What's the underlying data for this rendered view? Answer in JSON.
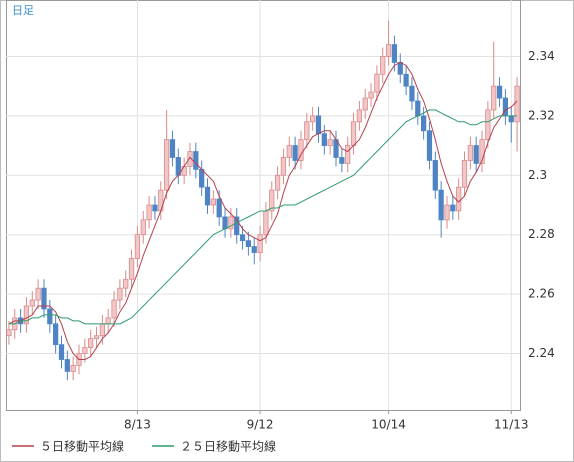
{
  "chart_data": {
    "type": "candlestick",
    "title": "日足",
    "categories": [
      null,
      null,
      null,
      null,
      null,
      null,
      null,
      null,
      null,
      null,
      null,
      null,
      null,
      null,
      null,
      null,
      null,
      null,
      null,
      null,
      null,
      null,
      "8/13",
      null,
      null,
      null,
      null,
      null,
      null,
      null,
      null,
      null,
      null,
      null,
      null,
      null,
      null,
      null,
      null,
      null,
      null,
      null,
      null,
      "9/12",
      null,
      null,
      null,
      null,
      null,
      null,
      null,
      null,
      null,
      null,
      null,
      null,
      null,
      null,
      null,
      null,
      null,
      null,
      null,
      null,
      null,
      "10/14",
      null,
      null,
      null,
      null,
      null,
      null,
      null,
      null,
      null,
      null,
      null,
      null,
      null,
      null,
      null,
      null,
      null,
      null,
      null,
      null,
      "11/13",
      null
    ],
    "open": [
      2.246,
      2.248,
      2.252,
      2.25,
      2.256,
      2.258,
      2.262,
      2.255,
      2.25,
      2.243,
      2.238,
      2.234,
      2.236,
      2.24,
      2.242,
      2.245,
      2.246,
      2.25,
      2.252,
      2.258,
      2.262,
      2.265,
      2.272,
      2.28,
      2.285,
      2.29,
      2.288,
      2.295,
      2.312,
      2.306,
      2.3,
      2.303,
      2.308,
      2.302,
      2.296,
      2.29,
      2.292,
      2.286,
      2.282,
      2.286,
      2.28,
      2.278,
      2.276,
      2.274,
      2.28,
      2.288,
      2.295,
      2.3,
      2.306,
      2.31,
      2.305,
      2.312,
      2.318,
      2.32,
      2.314,
      2.31,
      2.312,
      2.306,
      2.304,
      2.31,
      2.318,
      2.322,
      2.326,
      2.328,
      2.334,
      2.34,
      2.344,
      2.338,
      2.334,
      2.33,
      2.325,
      2.32,
      2.315,
      2.305,
      2.295,
      2.285,
      2.29,
      2.288,
      2.296,
      2.305,
      2.31,
      2.304,
      2.312,
      2.322,
      2.33,
      2.326,
      2.32,
      2.318
    ],
    "high": [
      2.251,
      2.255,
      2.255,
      2.259,
      2.261,
      2.265,
      2.265,
      2.258,
      2.253,
      2.246,
      2.241,
      2.239,
      2.243,
      2.245,
      2.248,
      2.249,
      2.253,
      2.255,
      2.261,
      2.265,
      2.268,
      2.275,
      2.283,
      2.288,
      2.293,
      2.293,
      2.298,
      2.322,
      2.315,
      2.309,
      2.306,
      2.311,
      2.311,
      2.305,
      2.299,
      2.295,
      2.295,
      2.289,
      2.289,
      2.289,
      2.283,
      2.281,
      2.279,
      2.283,
      2.291,
      2.298,
      2.303,
      2.309,
      2.313,
      2.313,
      2.315,
      2.321,
      2.323,
      2.323,
      2.317,
      2.315,
      2.315,
      2.309,
      2.313,
      2.321,
      2.325,
      2.329,
      2.331,
      2.337,
      2.343,
      2.352,
      2.347,
      2.341,
      2.337,
      2.333,
      2.328,
      2.323,
      2.318,
      2.308,
      2.298,
      2.293,
      2.293,
      2.299,
      2.308,
      2.313,
      2.313,
      2.315,
      2.325,
      2.345,
      2.333,
      2.329,
      2.323,
      2.333
    ],
    "low": [
      2.243,
      2.245,
      2.247,
      2.247,
      2.253,
      2.255,
      2.252,
      2.247,
      2.24,
      2.235,
      2.231,
      2.231,
      2.233,
      2.237,
      2.239,
      2.242,
      2.243,
      2.247,
      2.249,
      2.255,
      2.259,
      2.262,
      2.269,
      2.277,
      2.282,
      2.285,
      2.285,
      2.292,
      2.303,
      2.297,
      2.297,
      2.3,
      2.299,
      2.293,
      2.287,
      2.287,
      2.283,
      2.279,
      2.279,
      2.277,
      2.275,
      2.273,
      2.27,
      2.271,
      2.277,
      2.285,
      2.292,
      2.297,
      2.303,
      2.302,
      2.302,
      2.309,
      2.315,
      2.311,
      2.307,
      2.307,
      2.303,
      2.301,
      2.301,
      2.307,
      2.315,
      2.319,
      2.323,
      2.325,
      2.331,
      2.337,
      2.335,
      2.331,
      2.327,
      2.322,
      2.317,
      2.312,
      2.302,
      2.292,
      2.279,
      2.282,
      2.285,
      2.285,
      2.293,
      2.302,
      2.301,
      2.301,
      2.309,
      2.319,
      2.323,
      2.317,
      2.311,
      2.308
    ],
    "close": [
      2.248,
      2.252,
      2.25,
      2.256,
      2.258,
      2.262,
      2.255,
      2.25,
      2.243,
      2.238,
      2.234,
      2.236,
      2.24,
      2.242,
      2.245,
      2.246,
      2.25,
      2.252,
      2.258,
      2.262,
      2.265,
      2.272,
      2.28,
      2.285,
      2.29,
      2.288,
      2.295,
      2.312,
      2.306,
      2.3,
      2.303,
      2.308,
      2.302,
      2.296,
      2.29,
      2.292,
      2.286,
      2.282,
      2.286,
      2.28,
      2.278,
      2.276,
      2.274,
      2.28,
      2.288,
      2.295,
      2.3,
      2.306,
      2.31,
      2.305,
      2.312,
      2.318,
      2.32,
      2.314,
      2.31,
      2.312,
      2.306,
      2.304,
      2.31,
      2.318,
      2.322,
      2.326,
      2.328,
      2.334,
      2.34,
      2.344,
      2.338,
      2.334,
      2.33,
      2.325,
      2.32,
      2.315,
      2.305,
      2.295,
      2.285,
      2.29,
      2.288,
      2.296,
      2.305,
      2.31,
      2.304,
      2.312,
      2.322,
      2.33,
      2.326,
      2.32,
      2.318,
      2.33
    ],
    "up_color": "#d98a8a",
    "down_color": "#4f84c4",
    "series": [
      {
        "name": "５日移動平均線",
        "color": "#b5404e",
        "values": [
          2.25,
          2.251,
          2.251,
          2.252,
          2.253,
          2.256,
          2.256,
          2.256,
          2.254,
          2.25,
          2.244,
          2.24,
          2.238,
          2.238,
          2.239,
          2.242,
          2.245,
          2.247,
          2.25,
          2.254,
          2.257,
          2.262,
          2.267,
          2.273,
          2.278,
          2.283,
          2.288,
          2.294,
          2.298,
          2.3,
          2.303,
          2.306,
          2.304,
          2.302,
          2.3,
          2.298,
          2.293,
          2.289,
          2.287,
          2.285,
          2.282,
          2.28,
          2.279,
          2.278,
          2.279,
          2.283,
          2.287,
          2.294,
          2.3,
          2.303,
          2.307,
          2.31,
          2.313,
          2.314,
          2.315,
          2.315,
          2.312,
          2.309,
          2.308,
          2.31,
          2.312,
          2.316,
          2.321,
          2.326,
          2.33,
          2.334,
          2.337,
          2.338,
          2.337,
          2.334,
          2.329,
          2.325,
          2.319,
          2.312,
          2.304,
          2.298,
          2.293,
          2.291,
          2.293,
          2.298,
          2.301,
          2.305,
          2.311,
          2.316,
          2.319,
          2.322,
          2.323,
          2.325
        ]
      },
      {
        "name": "２５日移動平均線",
        "color": "#2e9c6c",
        "values": [
          2.25,
          2.25,
          2.251,
          2.251,
          2.252,
          2.252,
          2.253,
          2.253,
          2.253,
          2.252,
          2.252,
          2.251,
          2.251,
          2.25,
          2.25,
          2.25,
          2.25,
          2.25,
          2.25,
          2.25,
          2.251,
          2.252,
          2.254,
          2.256,
          2.258,
          2.26,
          2.262,
          2.264,
          2.266,
          2.268,
          2.27,
          2.272,
          2.274,
          2.276,
          2.278,
          2.28,
          2.281,
          2.282,
          2.283,
          2.284,
          2.285,
          2.286,
          2.287,
          2.288,
          2.288,
          2.289,
          2.289,
          2.29,
          2.29,
          2.29,
          2.291,
          2.292,
          2.293,
          2.294,
          2.295,
          2.296,
          2.297,
          2.298,
          2.299,
          2.3,
          2.302,
          2.304,
          2.306,
          2.308,
          2.31,
          2.312,
          2.314,
          2.316,
          2.318,
          2.319,
          2.32,
          2.321,
          2.322,
          2.322,
          2.321,
          2.32,
          2.319,
          2.318,
          2.318,
          2.317,
          2.317,
          2.318,
          2.318,
          2.319,
          2.32,
          2.32,
          2.32,
          2.32
        ]
      }
    ],
    "ylim": [
      2.221,
      2.359
    ],
    "yticks": [
      2.24,
      2.26,
      2.28,
      2.3,
      2.32,
      2.34
    ],
    "grid": true
  }
}
